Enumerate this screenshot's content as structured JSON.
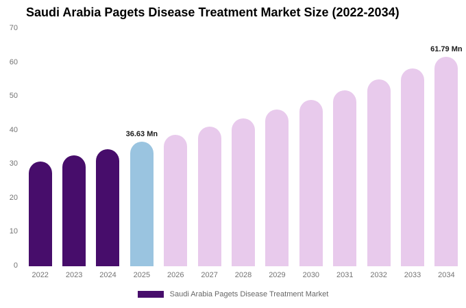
{
  "chart_data": {
    "type": "bar",
    "title": "Saudi Arabia Pagets Disease Treatment Market Size (2022-2034)",
    "xlabel": "",
    "ylabel": "",
    "unit": "Mn",
    "ylim": [
      0,
      70
    ],
    "yticks": [
      0,
      10,
      20,
      30,
      40,
      50,
      60,
      70
    ],
    "grid": false,
    "legend": "Saudi Arabia Pagets Disease Treatment Market",
    "legend_position": "bottom",
    "categories": [
      "2022",
      "2023",
      "2024",
      "2025",
      "2026",
      "2027",
      "2028",
      "2029",
      "2030",
      "2031",
      "2032",
      "2033",
      "2034"
    ],
    "values": [
      30.77,
      32.61,
      34.56,
      36.63,
      38.82,
      41.14,
      43.6,
      46.21,
      48.97,
      51.9,
      55.01,
      58.3,
      61.79
    ],
    "bar_roles": [
      "historical",
      "historical",
      "historical",
      "base_year",
      "forecast",
      "forecast",
      "forecast",
      "forecast",
      "forecast",
      "forecast",
      "forecast",
      "forecast",
      "forecast"
    ],
    "colors": {
      "historical": "#470D6B",
      "base_year": "#9AC4E0",
      "forecast": "#E8CAEC"
    },
    "value_labels": {
      "2025": "36.63 Mn",
      "2034": "61.79 Mn"
    }
  }
}
